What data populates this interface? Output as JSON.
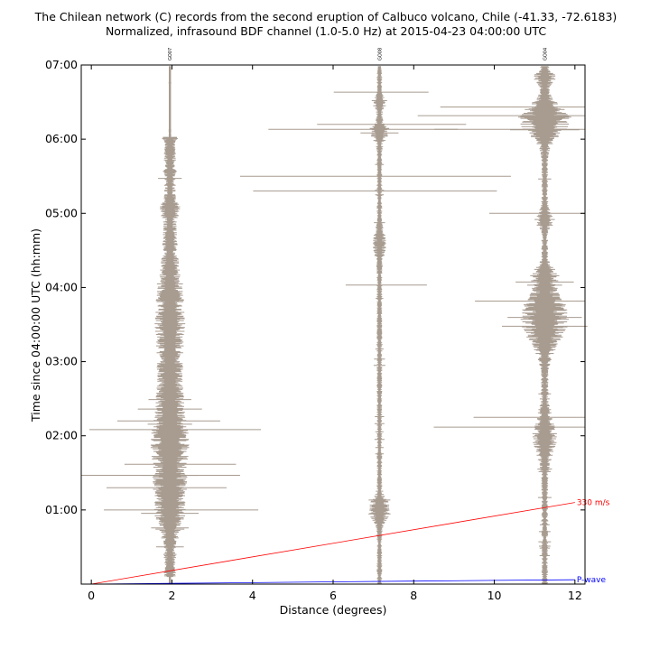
{
  "chart_data": {
    "type": "line",
    "title": "The Chilean network (C) records from the second eruption of Calbuco volcano, Chile (-41.33, -72.6183)",
    "subtitle": "Normalized, infrasound BDF channel (1.0-5.0 Hz) at 2015-04-23 04:00:00 UTC",
    "xlabel": "Distance (degrees)",
    "ylabel": "Time since 04:00:00 UTC (hh:mm)",
    "xlim": [
      -0.25,
      12.25
    ],
    "ylim": [
      0,
      420
    ],
    "x_ticks": [
      0,
      2,
      4,
      6,
      8,
      10,
      12
    ],
    "y_ticks": [
      {
        "minutes": 60,
        "label": "01:00"
      },
      {
        "minutes": 120,
        "label": "02:00"
      },
      {
        "minutes": 180,
        "label": "03:00"
      },
      {
        "minutes": 240,
        "label": "04:00"
      },
      {
        "minutes": 300,
        "label": "05:00"
      },
      {
        "minutes": 360,
        "label": "06:00"
      },
      {
        "minutes": 420,
        "label": "07:00"
      }
    ],
    "trace_color": "#a89c90",
    "stations": [
      {
        "name": "GO07",
        "distance": 1.95
      },
      {
        "name": "GO08",
        "distance": 7.15
      },
      {
        "name": "GO04",
        "distance": 11.25
      }
    ],
    "reference_lines": [
      {
        "label": "330 m/s",
        "color": "#ff0000",
        "points": [
          [
            0,
            0
          ],
          [
            12,
            66
          ]
        ]
      },
      {
        "label": "P-wave",
        "color": "#0000ff",
        "points": [
          [
            0,
            0
          ],
          [
            2,
            0.6
          ],
          [
            4,
            1.2
          ],
          [
            6,
            1.8
          ],
          [
            8,
            2.4
          ],
          [
            10,
            3.0
          ],
          [
            12,
            3.5
          ]
        ]
      }
    ],
    "grid": false
  }
}
